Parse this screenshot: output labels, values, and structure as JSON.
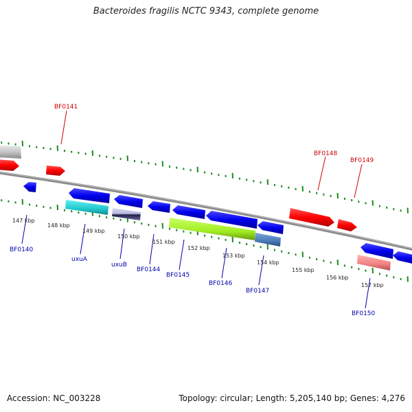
{
  "title": "Bacteroides fragilis NCTC 9343, complete genome",
  "accession": "Accession: NC_003228",
  "summary": "Topology: circular; Length: 5,205,140 bp; Genes: 4,276",
  "colors": {
    "backbone": "#888888",
    "ticks": "#1a8a1a",
    "forward_label": "#cc0000",
    "reverse_label": "#0000aa"
  },
  "kbp_ticks": [
    "147 kbp",
    "148 kbp",
    "149 kbp",
    "150 kbp",
    "151 kbp",
    "152 kbp",
    "153 kbp",
    "154 kbp",
    "155 kbp",
    "156 kbp",
    "157 kbp"
  ],
  "forward_labels": [
    "BF0141",
    "BF0148",
    "BF0149"
  ],
  "reverse_labels": [
    "BF0140",
    "uxuA",
    "uxuB",
    "BF0144",
    "BF0145",
    "BF0146",
    "BF0147",
    "BF0150"
  ]
}
